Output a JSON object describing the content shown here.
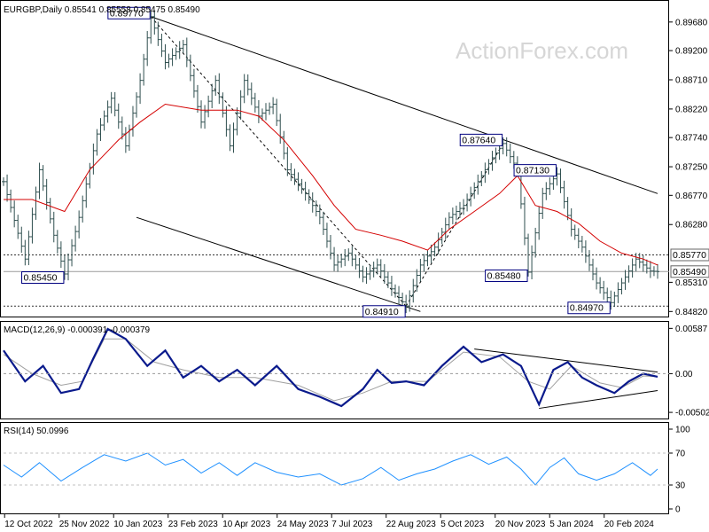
{
  "header": {
    "main": "EURGBP,Daily  0.85541 0.85558 0.85475 0.85490",
    "macd": "MACD(12,26,9) -0.000391 -0.000379",
    "rsi": "RSI(14) 50.0996"
  },
  "watermark": "ActionForex.com",
  "colors": {
    "price_bars": "#2f4f4f",
    "moving_average": "#d40000",
    "macd_line": "#0a1a8c",
    "macd_signal": "#a0a0a0",
    "rsi_line": "#1e90ff",
    "trendline": "#000000",
    "label_border": "#000080"
  },
  "chart_data": [
    {
      "type": "line",
      "panel": "price",
      "title": "EURGBP,Daily",
      "y_ticks": [
        "0.89680",
        "0.89200",
        "0.88710",
        "0.88220",
        "0.87740",
        "0.87250",
        "0.86770",
        "0.86280",
        "0.85310",
        "0.84820"
      ],
      "ylim": [
        0.8478,
        0.8999
      ],
      "x_ticks": [
        "12 Oct 2022",
        "25 Nov 2022",
        "10 Jan 2023",
        "23 Feb 2023",
        "10 Apr 2023",
        "24 May 2023",
        "7 Jul 2023",
        "22 Aug 2023",
        "5 Oct 2023",
        "20 Nov 2023",
        "5 Jan 2024",
        "20 Feb 2024"
      ],
      "ohlc_last": {
        "open": 0.85541,
        "high": 0.85558,
        "low": 0.85475,
        "close": 0.8549
      },
      "series": [
        {
          "name": "close",
          "points": [
            [
              0,
              0.87
            ],
            [
              6,
              0.857
            ],
            [
              10,
              0.872
            ],
            [
              14,
              0.861
            ],
            [
              17,
              0.8545
            ],
            [
              21,
              0.864
            ],
            [
              26,
              0.878
            ],
            [
              30,
              0.884
            ],
            [
              34,
              0.876
            ],
            [
              38,
              0.887
            ],
            [
              41,
              0.8977
            ],
            [
              45,
              0.89
            ],
            [
              50,
              0.893
            ],
            [
              55,
              0.88
            ],
            [
              59,
              0.887
            ],
            [
              63,
              0.876
            ],
            [
              67,
              0.887
            ],
            [
              71,
              0.881
            ],
            [
              75,
              0.883
            ],
            [
              79,
              0.872
            ],
            [
              84,
              0.868
            ],
            [
              88,
              0.864
            ],
            [
              92,
              0.856
            ],
            [
              96,
              0.858
            ],
            [
              100,
              0.854
            ],
            [
              104,
              0.856
            ],
            [
              108,
              0.852
            ],
            [
              112,
              0.8491
            ],
            [
              116,
              0.856
            ],
            [
              120,
              0.859
            ],
            [
              124,
              0.864
            ],
            [
              128,
              0.866
            ],
            [
              132,
              0.87
            ],
            [
              136,
              0.874
            ],
            [
              139,
              0.8764
            ],
            [
              143,
              0.872
            ],
            [
              146,
              0.8548
            ],
            [
              150,
              0.868
            ],
            [
              154,
              0.8713
            ],
            [
              158,
              0.862
            ],
            [
              161,
              0.859
            ],
            [
              165,
              0.853
            ],
            [
              169,
              0.8497
            ],
            [
              172,
              0.853
            ],
            [
              176,
              0.857
            ],
            [
              180,
              0.855
            ],
            [
              182,
              0.8549
            ]
          ]
        },
        {
          "name": "moving average",
          "points": [
            [
              0,
              0.867
            ],
            [
              8,
              0.867
            ],
            [
              17,
              0.865
            ],
            [
              24,
              0.872
            ],
            [
              32,
              0.877
            ],
            [
              38,
              0.88
            ],
            [
              45,
              0.883
            ],
            [
              55,
              0.882
            ],
            [
              65,
              0.882
            ],
            [
              71,
              0.881
            ],
            [
              78,
              0.877
            ],
            [
              86,
              0.871
            ],
            [
              92,
              0.866
            ],
            [
              98,
              0.862
            ],
            [
              105,
              0.861
            ],
            [
              111,
              0.86
            ],
            [
              118,
              0.8585
            ],
            [
              124,
              0.862
            ],
            [
              131,
              0.865
            ],
            [
              138,
              0.868
            ],
            [
              143,
              0.871
            ],
            [
              148,
              0.866
            ],
            [
              154,
              0.865
            ],
            [
              160,
              0.863
            ],
            [
              166,
              0.86
            ],
            [
              172,
              0.858
            ],
            [
              178,
              0.857
            ],
            [
              182,
              0.856
            ]
          ]
        }
      ],
      "levels": [
        0.8577,
        0.8549,
        0.8491
      ],
      "annotations": [
        "0.89770",
        "0.87640",
        "0.87130",
        "0.85770",
        "0.85450",
        "0.85480",
        "0.84970",
        "0.84910",
        "0.85490"
      ]
    },
    {
      "type": "line",
      "panel": "macd",
      "title": "MACD(12,26,9) -0.000391 -0.000379",
      "y_ticks": [
        "0.00587",
        "0.00",
        "-0.005021"
      ],
      "ylim": [
        -0.0057,
        0.0066
      ],
      "series": [
        {
          "name": "macd",
          "points": [
            [
              0,
              0.003
            ],
            [
              6,
              -0.001
            ],
            [
              11,
              0.001
            ],
            [
              16,
              -0.0025
            ],
            [
              21,
              -0.002
            ],
            [
              25,
              0.002
            ],
            [
              29,
              0.0058
            ],
            [
              34,
              0.0045
            ],
            [
              40,
              0.001
            ],
            [
              45,
              0.003
            ],
            [
              50,
              -0.0005
            ],
            [
              55,
              0.001
            ],
            [
              60,
              -0.001
            ],
            [
              65,
              0.0005
            ],
            [
              70,
              -0.0015
            ],
            [
              76,
              0.001
            ],
            [
              82,
              -0.002
            ],
            [
              88,
              -0.003
            ],
            [
              94,
              -0.0042
            ],
            [
              100,
              -0.002
            ],
            [
              104,
              0.0005
            ],
            [
              108,
              -0.0012
            ],
            [
              112,
              -0.001
            ],
            [
              117,
              -0.0015
            ],
            [
              122,
              0.001
            ],
            [
              128,
              0.0035
            ],
            [
              133,
              0.0015
            ],
            [
              139,
              0.0025
            ],
            [
              144,
              0.001
            ],
            [
              149,
              -0.004
            ],
            [
              153,
              0.0005
            ],
            [
              157,
              0.0015
            ],
            [
              161,
              -0.0005
            ],
            [
              165,
              -0.0015
            ],
            [
              170,
              -0.0025
            ],
            [
              174,
              -0.001
            ],
            [
              178,
              0.0
            ],
            [
              182,
              -0.0004
            ]
          ]
        },
        {
          "name": "signal",
          "points": [
            [
              0,
              0.0025
            ],
            [
              8,
              0.0
            ],
            [
              16,
              -0.0015
            ],
            [
              22,
              -0.001
            ],
            [
              28,
              0.0045
            ],
            [
              34,
              0.0045
            ],
            [
              42,
              0.0015
            ],
            [
              50,
              0.0005
            ],
            [
              60,
              -0.0005
            ],
            [
              70,
              -0.0005
            ],
            [
              82,
              -0.0015
            ],
            [
              92,
              -0.0035
            ],
            [
              100,
              -0.0025
            ],
            [
              108,
              -0.001
            ],
            [
              118,
              -0.001
            ],
            [
              128,
              0.0028
            ],
            [
              138,
              0.0022
            ],
            [
              146,
              -0.001
            ],
            [
              152,
              -0.002
            ],
            [
              158,
              0.001
            ],
            [
              166,
              -0.0012
            ],
            [
              172,
              -0.0018
            ],
            [
              178,
              -0.0003
            ],
            [
              182,
              -0.0004
            ]
          ]
        }
      ]
    },
    {
      "type": "line",
      "panel": "rsi",
      "title": "RSI(14) 50.0996",
      "y_ticks": [
        "100",
        "70",
        "30",
        "0"
      ],
      "ylim": [
        0,
        100
      ],
      "series": [
        {
          "name": "rsi",
          "points": [
            [
              0,
              55
            ],
            [
              5,
              40
            ],
            [
              10,
              58
            ],
            [
              16,
              35
            ],
            [
              22,
              52
            ],
            [
              28,
              68
            ],
            [
              34,
              60
            ],
            [
              40,
              70
            ],
            [
              45,
              55
            ],
            [
              50,
              62
            ],
            [
              55,
              45
            ],
            [
              60,
              58
            ],
            [
              65,
              42
            ],
            [
              70,
              58
            ],
            [
              76,
              46
            ],
            [
              82,
              40
            ],
            [
              88,
              44
            ],
            [
              94,
              30
            ],
            [
              100,
              38
            ],
            [
              105,
              52
            ],
            [
              110,
              36
            ],
            [
              115,
              44
            ],
            [
              120,
              50
            ],
            [
              125,
              60
            ],
            [
              130,
              68
            ],
            [
              135,
              56
            ],
            [
              140,
              65
            ],
            [
              144,
              50
            ],
            [
              148,
              30
            ],
            [
              152,
              52
            ],
            [
              156,
              64
            ],
            [
              160,
              44
            ],
            [
              165,
              36
            ],
            [
              170,
              44
            ],
            [
              175,
              58
            ],
            [
              180,
              42
            ],
            [
              182,
              50
            ]
          ]
        }
      ]
    }
  ]
}
